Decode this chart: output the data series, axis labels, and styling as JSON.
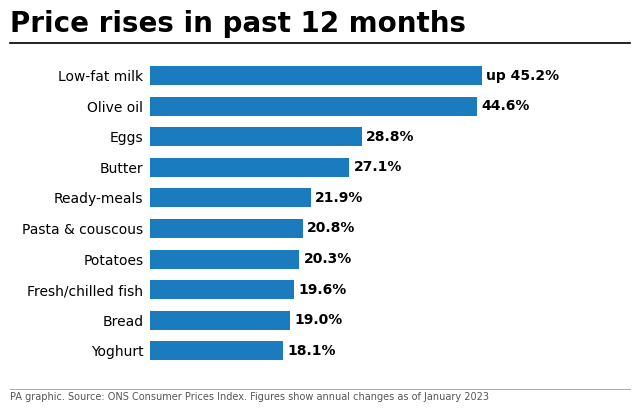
{
  "title": "Price rises in past 12 months",
  "categories": [
    "Yoghurt",
    "Bread",
    "Fresh/chilled fish",
    "Potatoes",
    "Pasta & couscous",
    "Ready-meals",
    "Butter",
    "Eggs",
    "Olive oil",
    "Low-fat milk"
  ],
  "values": [
    18.1,
    19.0,
    19.6,
    20.3,
    20.8,
    21.9,
    27.1,
    28.8,
    44.6,
    45.2
  ],
  "labels": [
    "18.1%",
    "19.0%",
    "19.6%",
    "20.3%",
    "20.8%",
    "21.9%",
    "27.1%",
    "28.8%",
    "44.6%",
    "up 45.2%"
  ],
  "bar_color": "#1a7bbf",
  "background_color": "#ffffff",
  "title_fontsize": 20,
  "label_fontsize": 10,
  "tick_fontsize": 10,
  "footer": "PA graphic. Source: ONS Consumer Prices Index. Figures show annual changes as of January 2023",
  "footer_fontsize": 7,
  "xlim": [
    0,
    55
  ]
}
